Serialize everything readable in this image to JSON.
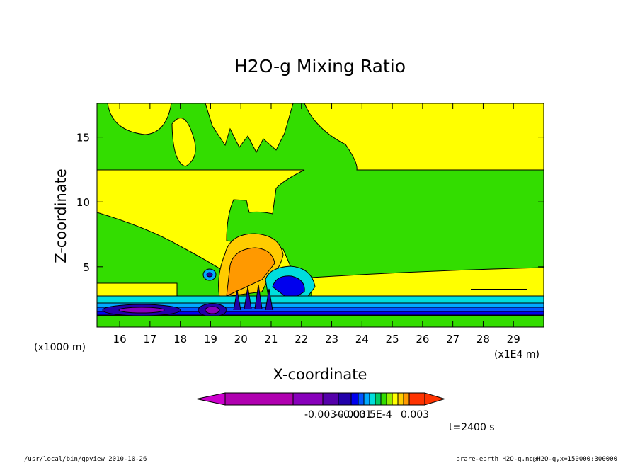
{
  "chart_data": {
    "type": "heatmap",
    "title": "H2O-g Mixing Ratio",
    "xlabel": "X-coordinate",
    "ylabel": "Z-coordinate",
    "x_unit": "(x1E4 m)",
    "y_unit": "(x1000 m)",
    "xlim": [
      15.25,
      30.0
    ],
    "ylim": [
      0.35,
      17.6
    ],
    "xticks": [
      16,
      17,
      18,
      19,
      20,
      21,
      22,
      23,
      24,
      25,
      26,
      27,
      28,
      29
    ],
    "yticks": [
      5,
      10,
      15
    ],
    "xtick_labels": [
      "16",
      "17",
      "18",
      "19",
      "20",
      "21",
      "22",
      "23",
      "24",
      "25",
      "26",
      "27",
      "28",
      "29"
    ],
    "ytick_labels": [
      "5",
      "10",
      "15"
    ],
    "colorbar": {
      "colors": [
        "#cc00cc",
        "#b000b0",
        "#8800bb",
        "#5500aa",
        "#2200aa",
        "#0000ee",
        "#0055ff",
        "#00aaff",
        "#00dddd",
        "#00cc66",
        "#33dd00",
        "#99ee00",
        "#ffff00",
        "#ffcc00",
        "#ff9900",
        "#ff3300"
      ],
      "labels": [
        "-0.003",
        "-0.003",
        "-0.001",
        "5E-4",
        "0.003"
      ]
    },
    "background_level_color": "#33dd00",
    "time_label": "t=2400 s"
  },
  "footer": {
    "left": "/usr/local/bin/gpview  2010-10-26",
    "right": "arare-earth_H2O-g.nc@H2O-g,x=150000:300000"
  }
}
